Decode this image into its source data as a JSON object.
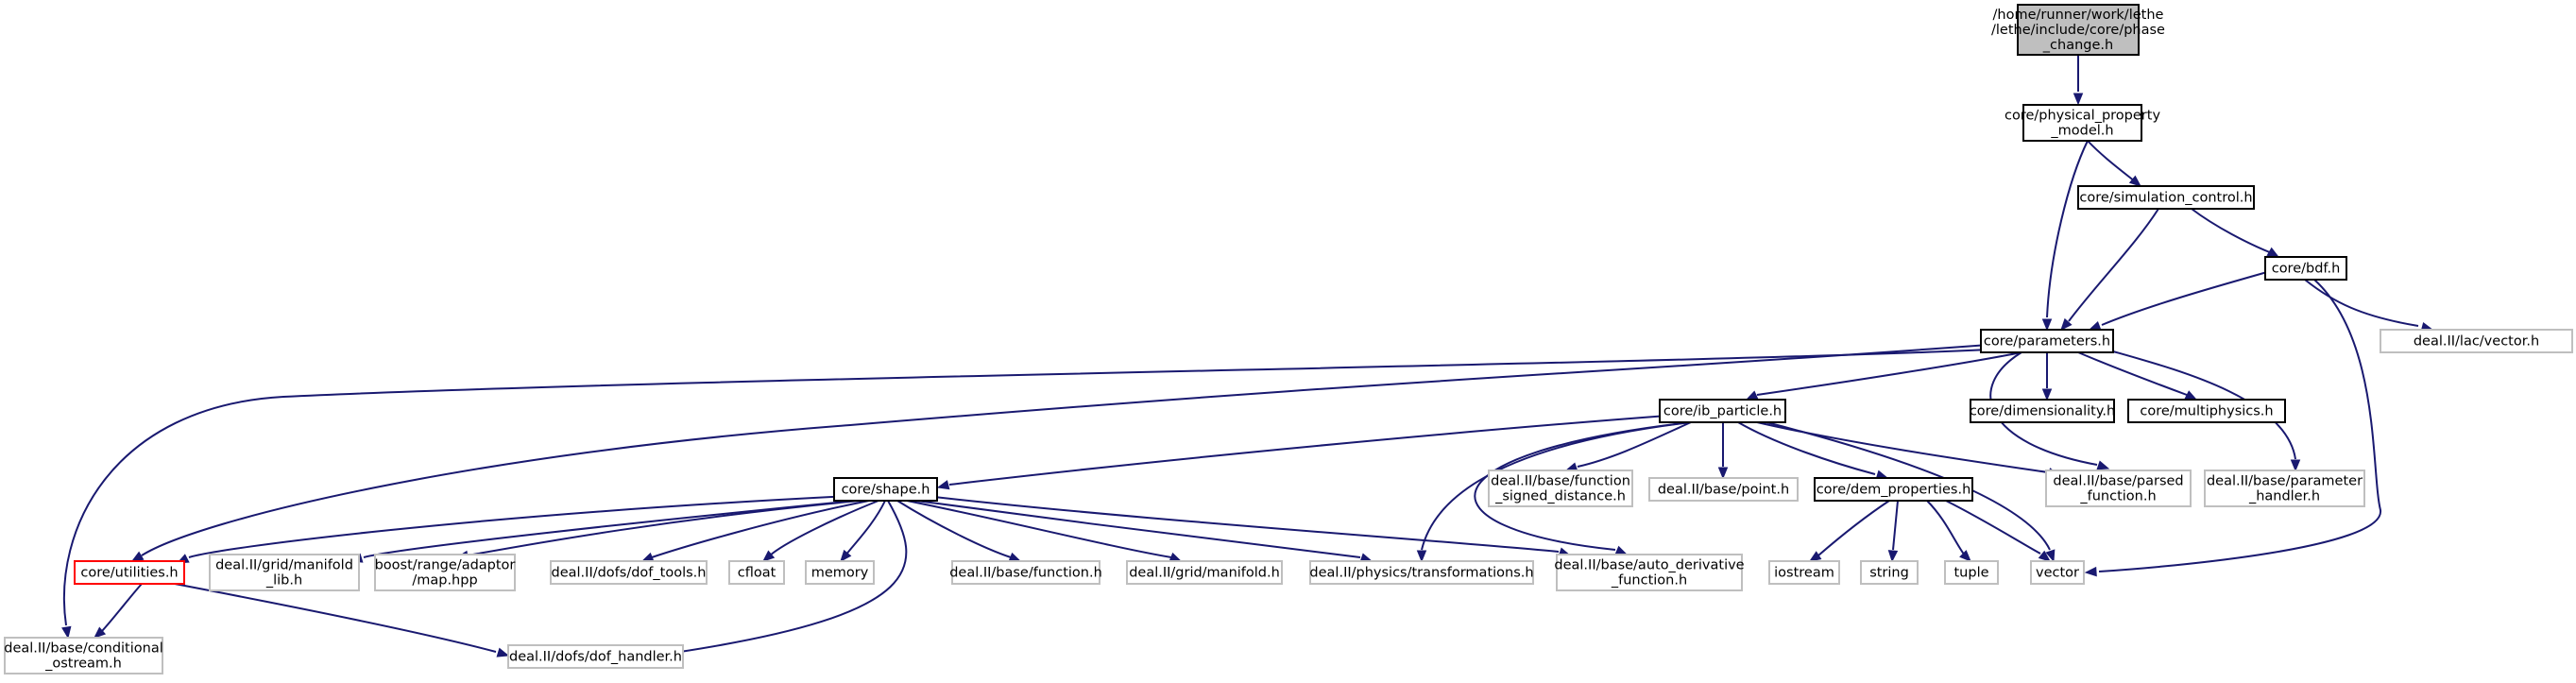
{
  "colors": {
    "edge": "#191970",
    "focus_fill": "#bfbfbf",
    "internal_border": "#000000",
    "external_border": "#bfbfbf",
    "warn_border": "#ff0000",
    "background": "#ffffff"
  },
  "nodes": [
    {
      "id": "phase",
      "kind": "focus",
      "lines": [
        "/home/runner/work/lethe",
        "/lethe/include/core/phase",
        "_change.h"
      ]
    },
    {
      "id": "physprop",
      "kind": "internal",
      "lines": [
        "core/physical_property",
        "_model.h"
      ]
    },
    {
      "id": "simctl",
      "kind": "internal",
      "lines": [
        "core/simulation_control.h"
      ]
    },
    {
      "id": "bdf",
      "kind": "internal",
      "lines": [
        "core/bdf.h"
      ]
    },
    {
      "id": "lacvector",
      "kind": "external",
      "lines": [
        "deal.II/lac/vector.h"
      ]
    },
    {
      "id": "params",
      "kind": "internal",
      "lines": [
        "core/parameters.h"
      ]
    },
    {
      "id": "ibparticle",
      "kind": "internal",
      "lines": [
        "core/ib_particle.h"
      ]
    },
    {
      "id": "dimensionality",
      "kind": "internal",
      "lines": [
        "core/dimensionality.h"
      ]
    },
    {
      "id": "multiphysics",
      "kind": "internal",
      "lines": [
        "core/multiphysics.h"
      ]
    },
    {
      "id": "shape",
      "kind": "internal",
      "lines": [
        "core/shape.h"
      ]
    },
    {
      "id": "fsd",
      "kind": "external",
      "lines": [
        "deal.II/base/function",
        "_signed_distance.h"
      ]
    },
    {
      "id": "point",
      "kind": "external",
      "lines": [
        "deal.II/base/point.h"
      ]
    },
    {
      "id": "demprops",
      "kind": "internal",
      "lines": [
        "core/dem_properties.h"
      ]
    },
    {
      "id": "parsedfn",
      "kind": "external",
      "lines": [
        "deal.II/base/parsed",
        "_function.h"
      ]
    },
    {
      "id": "paramhandler",
      "kind": "external",
      "lines": [
        "deal.II/base/parameter",
        "_handler.h"
      ]
    },
    {
      "id": "utilities",
      "kind": "warn",
      "lines": [
        "core/utilities.h"
      ]
    },
    {
      "id": "gridmanlib",
      "kind": "external",
      "lines": [
        "deal.II/grid/manifold",
        "_lib.h"
      ]
    },
    {
      "id": "boostmap",
      "kind": "external",
      "lines": [
        "boost/range/adaptor",
        "/map.hpp"
      ]
    },
    {
      "id": "doftools",
      "kind": "external",
      "lines": [
        "deal.II/dofs/dof_tools.h"
      ]
    },
    {
      "id": "cfloat",
      "kind": "external",
      "lines": [
        "cfloat"
      ]
    },
    {
      "id": "memory",
      "kind": "external",
      "lines": [
        "memory"
      ]
    },
    {
      "id": "function",
      "kind": "external",
      "lines": [
        "deal.II/base/function.h"
      ]
    },
    {
      "id": "gridman",
      "kind": "external",
      "lines": [
        "deal.II/grid/manifold.h"
      ]
    },
    {
      "id": "transforms",
      "kind": "external",
      "lines": [
        "deal.II/physics/transformations.h"
      ]
    },
    {
      "id": "autoderiv",
      "kind": "external",
      "lines": [
        "deal.II/base/auto_derivative",
        "_function.h"
      ]
    },
    {
      "id": "iostream",
      "kind": "external",
      "lines": [
        "iostream"
      ]
    },
    {
      "id": "string",
      "kind": "external",
      "lines": [
        "string"
      ]
    },
    {
      "id": "tuple",
      "kind": "external",
      "lines": [
        "tuple"
      ]
    },
    {
      "id": "vector",
      "kind": "external",
      "lines": [
        "vector"
      ]
    },
    {
      "id": "condostream",
      "kind": "external",
      "lines": [
        "deal.II/base/conditional",
        "_ostream.h"
      ]
    },
    {
      "id": "dofhandler",
      "kind": "external",
      "lines": [
        "deal.II/dofs/dof_handler.h"
      ]
    }
  ]
}
